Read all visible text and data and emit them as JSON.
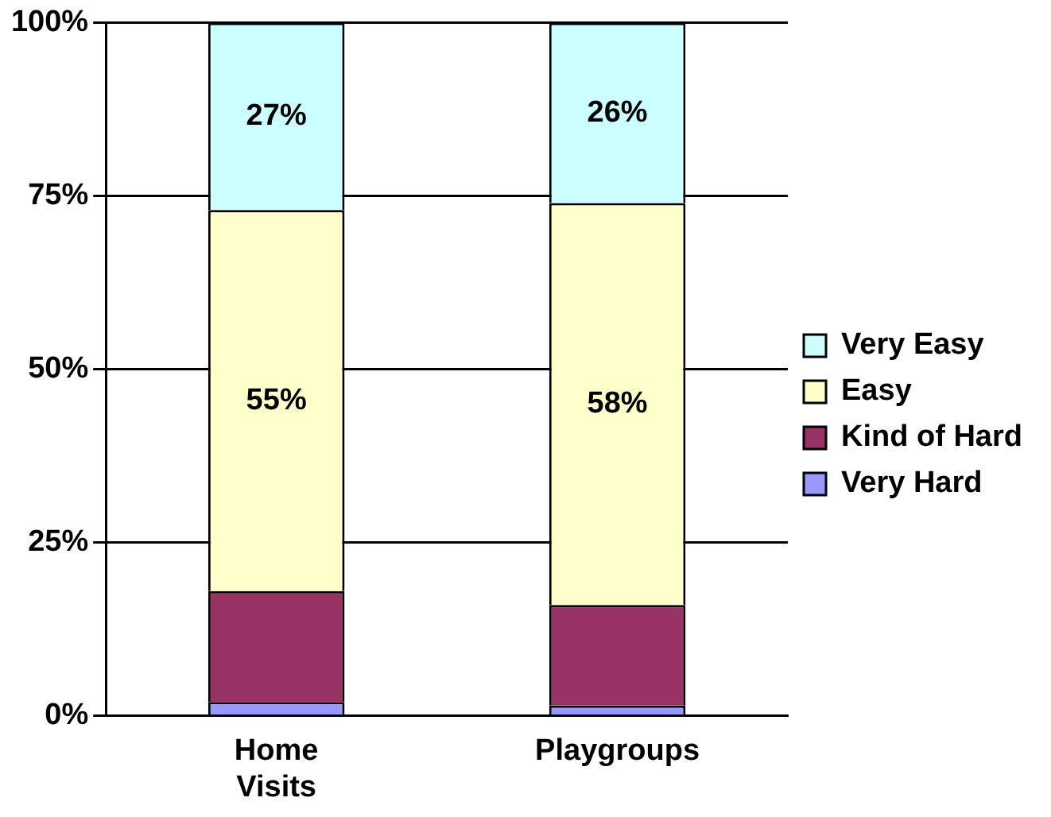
{
  "chart_data": {
    "type": "bar",
    "stacked": true,
    "categories": [
      "Home Visits",
      "Playgroups"
    ],
    "series": [
      {
        "name": "Very Hard",
        "color": "#9999ff",
        "values": [
          2,
          1.5
        ]
      },
      {
        "name": "Kind of Hard",
        "color": "#993366",
        "values": [
          16,
          14.5
        ]
      },
      {
        "name": "Easy",
        "color": "#ffffcc",
        "values": [
          55,
          58
        ],
        "value_labels": [
          "55%",
          "58%"
        ]
      },
      {
        "name": "Very Easy",
        "color": "#ccffff",
        "values": [
          27,
          26
        ],
        "value_labels": [
          "27%",
          "26%"
        ]
      }
    ],
    "ylim": [
      0,
      100
    ],
    "yticks": [
      {
        "value": 0,
        "label": "0%"
      },
      {
        "value": 25,
        "label": "25%"
      },
      {
        "value": 50,
        "label": "50%"
      },
      {
        "value": 75,
        "label": "75%"
      },
      {
        "value": 100,
        "label": "100%"
      }
    ],
    "grid": "y",
    "legend": "right"
  }
}
